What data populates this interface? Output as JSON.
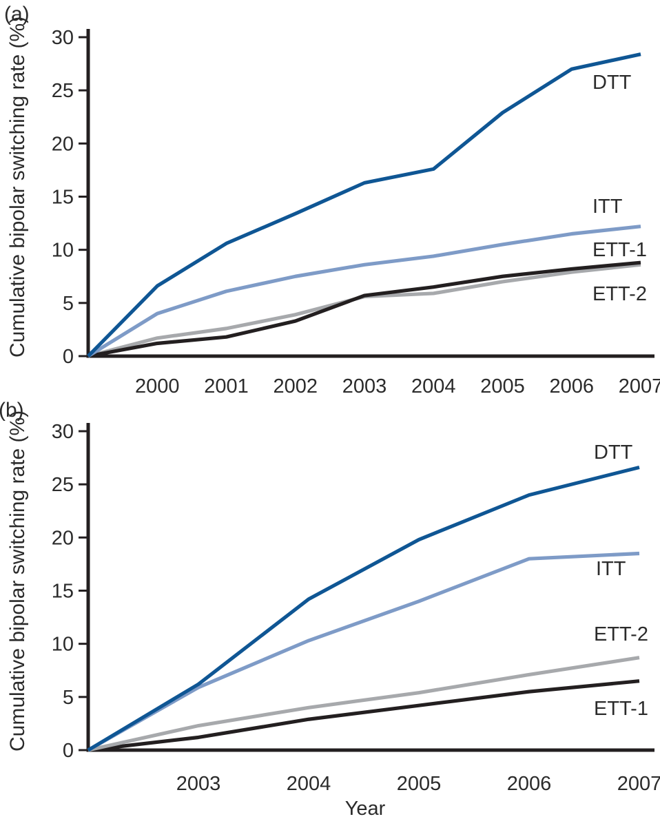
{
  "figure": {
    "axis_color": "#231f20",
    "text_color": "#2b2b2b",
    "panel_a_label": "(a)",
    "panel_b_label": "(b)",
    "y_axis_title_a": "Cumulative bipolar switching rate (%)",
    "y_axis_title_b": "Cumulative bipolar switching rate (%)",
    "x_axis_title": "Year"
  },
  "chart_data": [
    {
      "type": "line",
      "panel_label": "(a)",
      "title": "",
      "ylabel": "Cumulative bipolar switching rate (%)",
      "xlabel": "",
      "ylim": [
        0,
        30
      ],
      "yticks": [
        0,
        5,
        10,
        15,
        20,
        25,
        30
      ],
      "x": [
        1999,
        2000,
        2001,
        2002,
        2003,
        2004,
        2005,
        2006,
        2007
      ],
      "xticks": [
        2000,
        2001,
        2002,
        2003,
        2004,
        2005,
        2006,
        2007
      ],
      "grid": false,
      "legend_position": "inline-right",
      "series": [
        {
          "name": "DTT",
          "color": "#0f5694",
          "values": [
            0,
            6.6,
            10.6,
            13.4,
            16.3,
            17.6,
            22.9,
            27.0,
            28.4
          ]
        },
        {
          "name": "ITT",
          "color": "#7e9bc7",
          "values": [
            0,
            4.0,
            6.1,
            7.5,
            8.6,
            9.4,
            10.5,
            11.5,
            12.2
          ]
        },
        {
          "name": "ETT-1",
          "color": "#231f20",
          "values": [
            0,
            1.2,
            1.8,
            3.3,
            5.7,
            6.5,
            7.5,
            8.2,
            8.8
          ]
        },
        {
          "name": "ETT-2",
          "color": "#a7a9ac",
          "values": [
            0,
            1.7,
            2.6,
            3.9,
            5.6,
            5.9,
            7.0,
            7.9,
            8.6
          ]
        }
      ]
    },
    {
      "type": "line",
      "panel_label": "(b)",
      "title": "",
      "ylabel": "Cumulative bipolar switching rate (%)",
      "xlabel": "Year",
      "ylim": [
        0,
        30
      ],
      "yticks": [
        0,
        5,
        10,
        15,
        20,
        25,
        30
      ],
      "x": [
        2002,
        2003,
        2004,
        2005,
        2006,
        2007
      ],
      "xticks": [
        2003,
        2004,
        2005,
        2006,
        2007
      ],
      "grid": false,
      "legend_position": "inline-right",
      "series": [
        {
          "name": "DTT",
          "color": "#0f5694",
          "values": [
            0,
            6.2,
            14.2,
            19.8,
            24.0,
            26.6
          ]
        },
        {
          "name": "ITT",
          "color": "#7e9bc7",
          "values": [
            0,
            5.9,
            10.3,
            14.0,
            18.0,
            18.5
          ]
        },
        {
          "name": "ETT-2",
          "color": "#a7a9ac",
          "values": [
            0,
            2.3,
            4.0,
            5.4,
            7.1,
            8.7
          ]
        },
        {
          "name": "ETT-1",
          "color": "#231f20",
          "values": [
            0,
            1.2,
            2.9,
            4.2,
            5.5,
            6.5
          ]
        }
      ]
    }
  ]
}
